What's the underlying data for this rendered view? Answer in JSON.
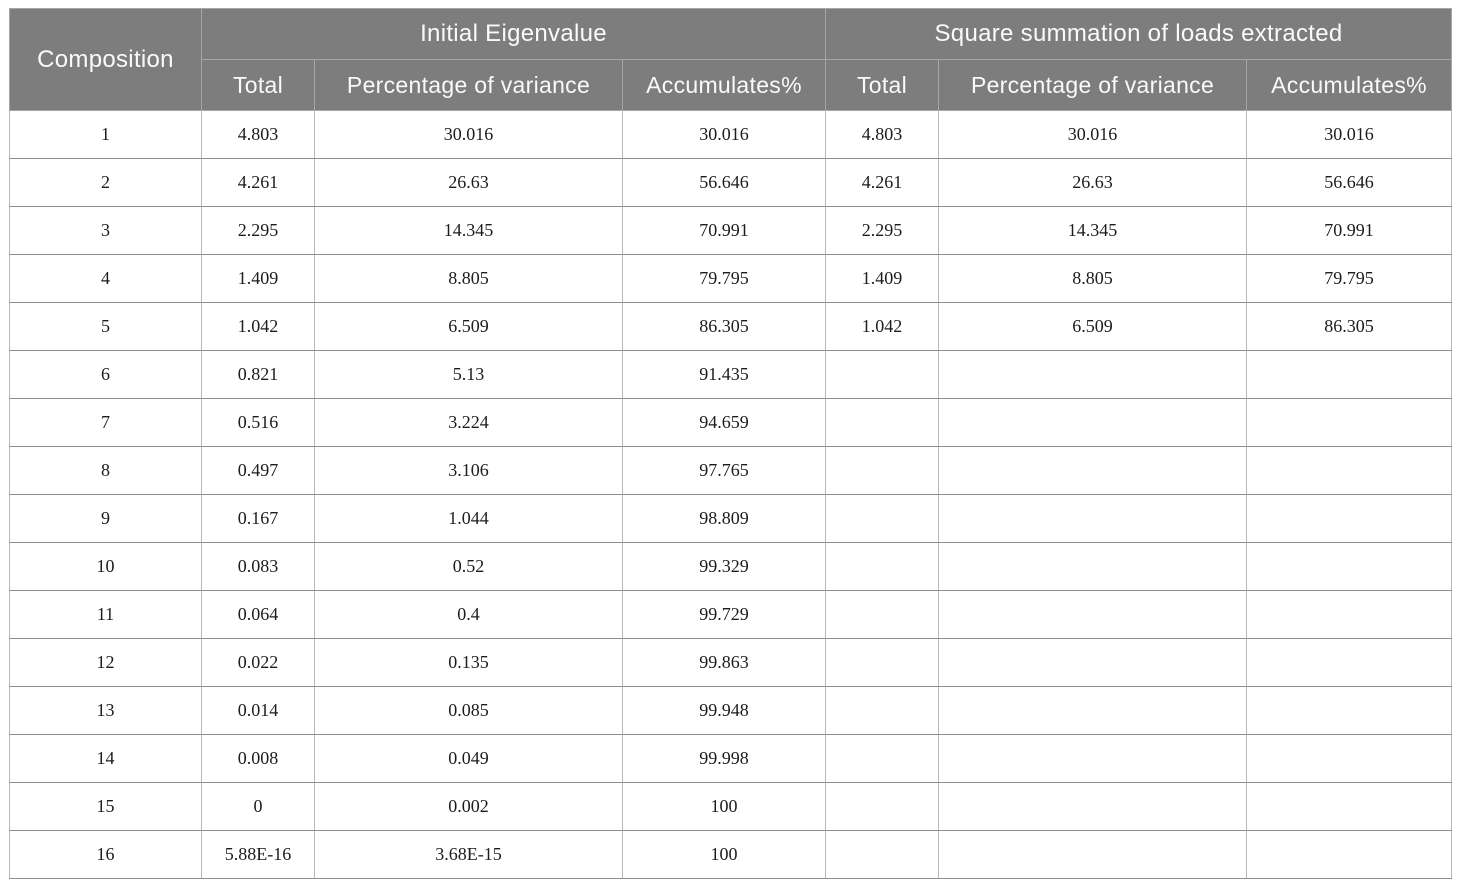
{
  "table": {
    "header": {
      "composition": "Composition",
      "groups": [
        {
          "label": "Initial Eigenvalue",
          "columns": [
            "Total",
            "Percentage of variance",
            "Accumulates%"
          ]
        },
        {
          "label": "Square summation of loads extracted",
          "columns": [
            "Total",
            "Percentage of variance",
            "Accumulates%"
          ]
        }
      ]
    },
    "rows": [
      {
        "composition": "1",
        "initial": [
          "4.803",
          "30.016",
          "30.016"
        ],
        "extracted": [
          "4.803",
          "30.016",
          "30.016"
        ]
      },
      {
        "composition": "2",
        "initial": [
          "4.261",
          "26.63",
          "56.646"
        ],
        "extracted": [
          "4.261",
          "26.63",
          "56.646"
        ]
      },
      {
        "composition": "3",
        "initial": [
          "2.295",
          "14.345",
          "70.991"
        ],
        "extracted": [
          "2.295",
          "14.345",
          "70.991"
        ]
      },
      {
        "composition": "4",
        "initial": [
          "1.409",
          "8.805",
          "79.795"
        ],
        "extracted": [
          "1.409",
          "8.805",
          "79.795"
        ]
      },
      {
        "composition": "5",
        "initial": [
          "1.042",
          "6.509",
          "86.305"
        ],
        "extracted": [
          "1.042",
          "6.509",
          "86.305"
        ]
      },
      {
        "composition": "6",
        "initial": [
          "0.821",
          "5.13",
          "91.435"
        ],
        "extracted": [
          "",
          "",
          ""
        ]
      },
      {
        "composition": "7",
        "initial": [
          "0.516",
          "3.224",
          "94.659"
        ],
        "extracted": [
          "",
          "",
          ""
        ]
      },
      {
        "composition": "8",
        "initial": [
          "0.497",
          "3.106",
          "97.765"
        ],
        "extracted": [
          "",
          "",
          ""
        ]
      },
      {
        "composition": "9",
        "initial": [
          "0.167",
          "1.044",
          "98.809"
        ],
        "extracted": [
          "",
          "",
          ""
        ]
      },
      {
        "composition": "10",
        "initial": [
          "0.083",
          "0.52",
          "99.329"
        ],
        "extracted": [
          "",
          "",
          ""
        ]
      },
      {
        "composition": "11",
        "initial": [
          "0.064",
          "0.4",
          "99.729"
        ],
        "extracted": [
          "",
          "",
          ""
        ]
      },
      {
        "composition": "12",
        "initial": [
          "0.022",
          "0.135",
          "99.863"
        ],
        "extracted": [
          "",
          "",
          ""
        ]
      },
      {
        "composition": "13",
        "initial": [
          "0.014",
          "0.085",
          "99.948"
        ],
        "extracted": [
          "",
          "",
          ""
        ]
      },
      {
        "composition": "14",
        "initial": [
          "0.008",
          "0.049",
          "99.998"
        ],
        "extracted": [
          "",
          "",
          ""
        ]
      },
      {
        "composition": "15",
        "initial": [
          "0",
          "0.002",
          "100"
        ],
        "extracted": [
          "",
          "",
          ""
        ]
      },
      {
        "composition": "16",
        "initial": [
          "5.88E-16",
          "3.68E-15",
          "100"
        ],
        "extracted": [
          "",
          "",
          ""
        ]
      }
    ]
  },
  "colors": {
    "header_bg": "#7d7d7d",
    "header_text": "#fafafa",
    "header_divider": "#a6a6a6",
    "body_text": "#1c1c1c",
    "row_border": "#8f8f8f",
    "col_border": "#b8b8b8",
    "background": "#ffffff"
  }
}
